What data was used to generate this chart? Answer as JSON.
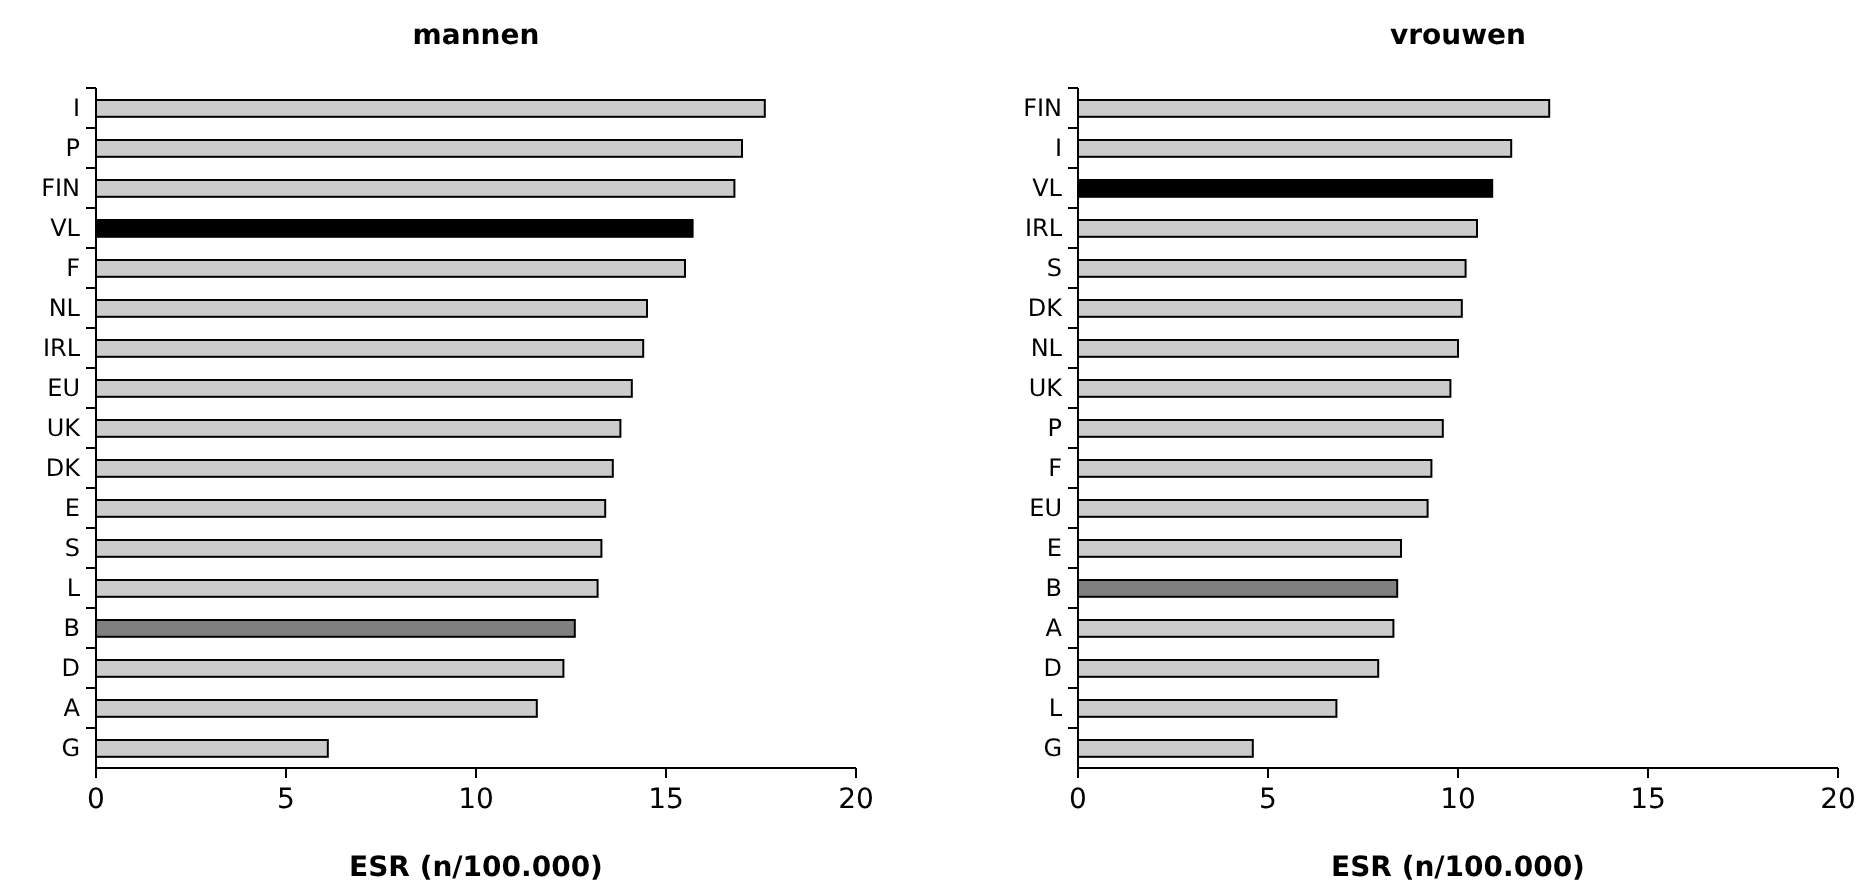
{
  "chart_data": [
    {
      "type": "bar",
      "orientation": "horizontal",
      "title": "mannen",
      "xlabel": "ESR (n/100.000)",
      "categories": [
        "I",
        "P",
        "FIN",
        "VL",
        "F",
        "NL",
        "IRL",
        "EU",
        "UK",
        "DK",
        "E",
        "S",
        "L",
        "B",
        "D",
        "A",
        "G"
      ],
      "values": [
        17.6,
        17.0,
        16.8,
        15.7,
        15.5,
        14.5,
        14.4,
        14.1,
        13.8,
        13.6,
        13.4,
        13.3,
        13.2,
        12.6,
        12.3,
        11.6,
        6.1
      ],
      "colors": [
        "#cccccc",
        "#cccccc",
        "#cccccc",
        "#000000",
        "#cccccc",
        "#cccccc",
        "#cccccc",
        "#cccccc",
        "#cccccc",
        "#cccccc",
        "#cccccc",
        "#cccccc",
        "#cccccc",
        "#808080",
        "#cccccc",
        "#cccccc",
        "#cccccc"
      ],
      "xlim": [
        0,
        20
      ],
      "xticks": [
        0,
        5,
        10,
        15,
        20
      ]
    },
    {
      "type": "bar",
      "orientation": "horizontal",
      "title": "vrouwen",
      "xlabel": "ESR (n/100.000)",
      "categories": [
        "FIN",
        "I",
        "VL",
        "IRL",
        "S",
        "DK",
        "NL",
        "UK",
        "P",
        "F",
        "EU",
        "E",
        "B",
        "A",
        "D",
        "L",
        "G"
      ],
      "values": [
        12.4,
        11.4,
        10.9,
        10.5,
        10.2,
        10.1,
        10.0,
        9.8,
        9.6,
        9.3,
        9.2,
        8.5,
        8.4,
        8.3,
        7.9,
        6.8,
        4.6
      ],
      "colors": [
        "#cccccc",
        "#cccccc",
        "#000000",
        "#cccccc",
        "#cccccc",
        "#cccccc",
        "#cccccc",
        "#cccccc",
        "#cccccc",
        "#cccccc",
        "#cccccc",
        "#cccccc",
        "#808080",
        "#cccccc",
        "#cccccc",
        "#cccccc",
        "#cccccc"
      ],
      "xlim": [
        0,
        20
      ],
      "xticks": [
        0,
        5,
        10,
        15,
        20
      ]
    }
  ]
}
